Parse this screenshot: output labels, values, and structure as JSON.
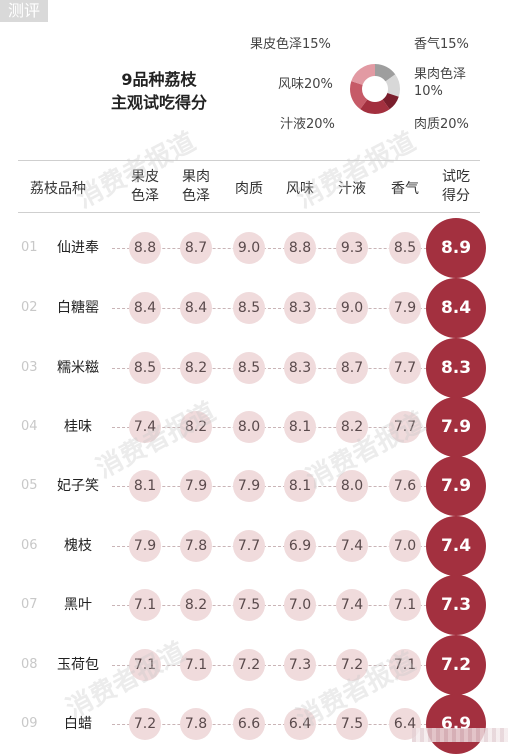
{
  "corner_tag": "测评",
  "title_line1": "9品种荔枝",
  "title_line2": "主观试吃得分",
  "watermark": "消费者报道",
  "weights": [
    {
      "label": "果皮色泽15%",
      "pct": 15,
      "color": "#9e9e9e"
    },
    {
      "label": "香气15%",
      "pct": 15,
      "color": "#d8d8d8"
    },
    {
      "label": "果肉色泽10%",
      "pct": 10,
      "color": "#7a1e2c"
    },
    {
      "label": "肉质20%",
      "pct": 20,
      "color": "#a3303f"
    },
    {
      "label": "汁液20%",
      "pct": 20,
      "color": "#c65a67"
    },
    {
      "label": "风味20%",
      "pct": 20,
      "color": "#e29aa3"
    }
  ],
  "colors": {
    "score": "#a3303f",
    "bubble": "#f0dbdc"
  },
  "columns": [
    "荔枝品种",
    "果皮色泽",
    "果肉色泽",
    "肉质",
    "风味",
    "汁液",
    "香气",
    "试吃得分"
  ],
  "column_lines": [
    [
      "荔枝品种"
    ],
    [
      "果皮",
      "色泽"
    ],
    [
      "果肉",
      "色泽"
    ],
    [
      "肉质"
    ],
    [
      "风味"
    ],
    [
      "汁液"
    ],
    [
      "香气"
    ],
    [
      "试吃",
      "得分"
    ]
  ],
  "chart_data": {
    "type": "table",
    "columns": [
      "果皮色泽",
      "果肉色泽",
      "肉质",
      "风味",
      "汁液",
      "香气",
      "试吃得分"
    ],
    "rows": [
      {
        "num": "01",
        "name": "仙进奉",
        "values": [
          "8.8",
          "8.7",
          "9.0",
          "8.8",
          "9.3",
          "8.5"
        ],
        "total": "8.9"
      },
      {
        "num": "02",
        "name": "白糖罂",
        "values": [
          "8.4",
          "8.4",
          "8.5",
          "8.3",
          "9.0",
          "7.9"
        ],
        "total": "8.4"
      },
      {
        "num": "03",
        "name": "糯米糍",
        "values": [
          "8.5",
          "8.2",
          "8.5",
          "8.3",
          "8.7",
          "7.7"
        ],
        "total": "8.3"
      },
      {
        "num": "04",
        "name": "桂味",
        "values": [
          "7.4",
          "8.2",
          "8.0",
          "8.1",
          "8.2",
          "7.7"
        ],
        "total": "7.9"
      },
      {
        "num": "05",
        "name": "妃子笑",
        "values": [
          "8.1",
          "7.9",
          "7.9",
          "8.1",
          "8.0",
          "7.6"
        ],
        "total": "7.9"
      },
      {
        "num": "06",
        "name": "槐枝",
        "values": [
          "7.9",
          "7.8",
          "7.7",
          "6.9",
          "7.4",
          "7.0"
        ],
        "total": "7.4"
      },
      {
        "num": "07",
        "name": "黑叶",
        "values": [
          "7.1",
          "8.2",
          "7.5",
          "7.0",
          "7.4",
          "7.1"
        ],
        "total": "7.3"
      },
      {
        "num": "08",
        "name": "玉荷包",
        "values": [
          "7.1",
          "7.1",
          "7.2",
          "7.3",
          "7.2",
          "7.1"
        ],
        "total": "7.2"
      },
      {
        "num": "09",
        "name": "白蜡",
        "values": [
          "7.2",
          "7.8",
          "6.6",
          "6.4",
          "7.5",
          "6.4"
        ],
        "total": "6.9"
      }
    ]
  }
}
